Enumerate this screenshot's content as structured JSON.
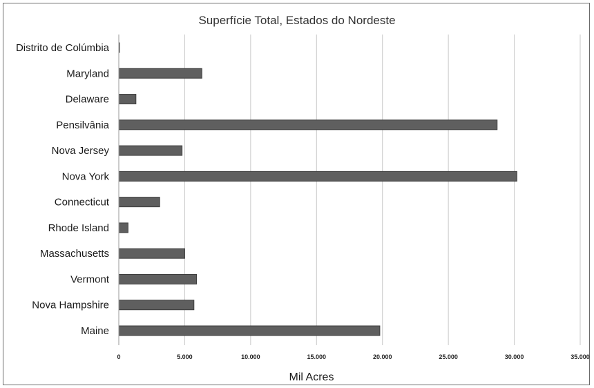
{
  "chart_data": {
    "type": "bar",
    "orientation": "horizontal",
    "title": "Superfície Total, Estados do Nordeste",
    "xlabel": "Mil Acres",
    "ylabel": "",
    "categories": [
      "Distrito de Colúmbia",
      "Maryland",
      "Delaware",
      "Pensilvânia",
      "Nova Jersey",
      "Nova York",
      "Connecticut",
      "Rhode Island",
      "Massachusetts",
      "Vermont",
      "Nova Hampshire",
      "Maine"
    ],
    "values": [
      40,
      6300,
      1300,
      28700,
      4800,
      30200,
      3100,
      700,
      5000,
      5900,
      5700,
      19800
    ],
    "xlim": [
      0,
      35000
    ],
    "xticks": [
      0,
      5000,
      10000,
      15000,
      20000,
      25000,
      30000,
      35000
    ],
    "xtick_labels": [
      "0",
      "5.000",
      "10.000",
      "15.000",
      "20.000",
      "25.000",
      "30.000",
      "35.000"
    ],
    "grid": true,
    "legend": "none",
    "bar_color": "#5f5f5f"
  }
}
